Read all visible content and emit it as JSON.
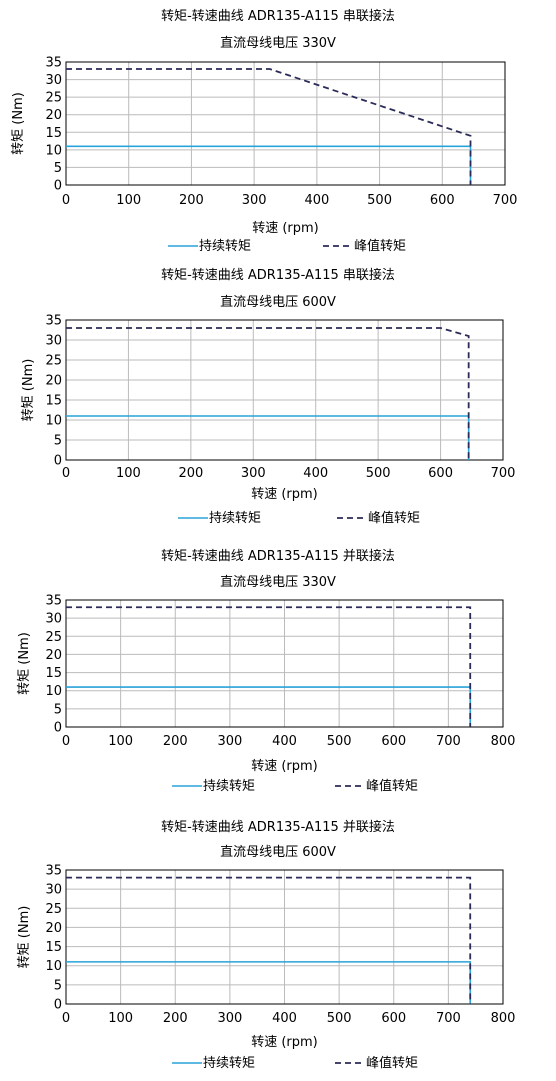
{
  "colors": {
    "continuous": "#29a3d8",
    "peak": "#2b2b57",
    "grid": "#bbbbbb",
    "axis": "#000000"
  },
  "chart_data": [
    {
      "type": "line",
      "title": "转矩-转速曲线 ADR135-A115 串联接法",
      "subtitle": "直流母线电压 330V",
      "xlabel": "转速 (rpm)",
      "ylabel": "转矩 (Nm)",
      "xlim": [
        0,
        700
      ],
      "ylim": [
        0,
        35
      ],
      "xticks": [
        0,
        100,
        200,
        300,
        400,
        500,
        600,
        700
      ],
      "yticks": [
        0,
        5,
        10,
        15,
        20,
        25,
        30,
        35
      ],
      "grid": true,
      "legend_position": "bottom",
      "series": [
        {
          "name": "持续转矩",
          "style": "solid",
          "x": [
            0,
            645,
            645
          ],
          "y": [
            11,
            11,
            0
          ]
        },
        {
          "name": "峰值转矩",
          "style": "dashed",
          "x": [
            0,
            325,
            645,
            645
          ],
          "y": [
            33,
            33,
            14,
            0
          ]
        }
      ]
    },
    {
      "type": "line",
      "title": "转矩-转速曲线 ADR135-A115 串联接法",
      "subtitle": "直流母线电压 600V",
      "xlabel": "转速 (rpm)",
      "ylabel": "转矩 (Nm)",
      "xlim": [
        0,
        700
      ],
      "ylim": [
        0,
        35
      ],
      "xticks": [
        0,
        100,
        200,
        300,
        400,
        500,
        600,
        700
      ],
      "yticks": [
        0,
        5,
        10,
        15,
        20,
        25,
        30,
        35
      ],
      "grid": true,
      "legend_position": "bottom",
      "series": [
        {
          "name": "持续转矩",
          "style": "solid",
          "x": [
            0,
            645,
            645
          ],
          "y": [
            11,
            11,
            0
          ]
        },
        {
          "name": "峰值转矩",
          "style": "dashed",
          "x": [
            0,
            600,
            645,
            645
          ],
          "y": [
            33,
            33,
            31,
            0
          ]
        }
      ]
    },
    {
      "type": "line",
      "title": "转矩-转速曲线 ADR135-A115 并联接法",
      "subtitle": "直流母线电压 330V",
      "xlabel": "转速 (rpm)",
      "ylabel": "转矩 (Nm)",
      "xlim": [
        0,
        800
      ],
      "ylim": [
        0,
        35
      ],
      "xticks": [
        0,
        100,
        200,
        300,
        400,
        500,
        600,
        700,
        800
      ],
      "yticks": [
        0,
        5,
        10,
        15,
        20,
        25,
        30,
        35
      ],
      "grid": true,
      "legend_position": "bottom",
      "series": [
        {
          "name": "持续转矩",
          "style": "solid",
          "x": [
            0,
            740,
            740
          ],
          "y": [
            11,
            11,
            0
          ]
        },
        {
          "name": "峰值转矩",
          "style": "dashed",
          "x": [
            0,
            740,
            740
          ],
          "y": [
            33,
            33,
            0
          ]
        }
      ]
    },
    {
      "type": "line",
      "title": "转矩-转速曲线 ADR135-A115 并联接法",
      "subtitle": "直流母线电压 600V",
      "xlabel": "转速 (rpm)",
      "ylabel": "转矩 (Nm)",
      "xlim": [
        0,
        800
      ],
      "ylim": [
        0,
        35
      ],
      "xticks": [
        0,
        100,
        200,
        300,
        400,
        500,
        600,
        700,
        800
      ],
      "yticks": [
        0,
        5,
        10,
        15,
        20,
        25,
        30,
        35
      ],
      "grid": true,
      "legend_position": "bottom",
      "series": [
        {
          "name": "持续转矩",
          "style": "solid",
          "x": [
            0,
            740,
            740
          ],
          "y": [
            11,
            11,
            0
          ]
        },
        {
          "name": "峰值转矩",
          "style": "dashed",
          "x": [
            0,
            740,
            740
          ],
          "y": [
            33,
            33,
            0
          ]
        }
      ]
    }
  ]
}
